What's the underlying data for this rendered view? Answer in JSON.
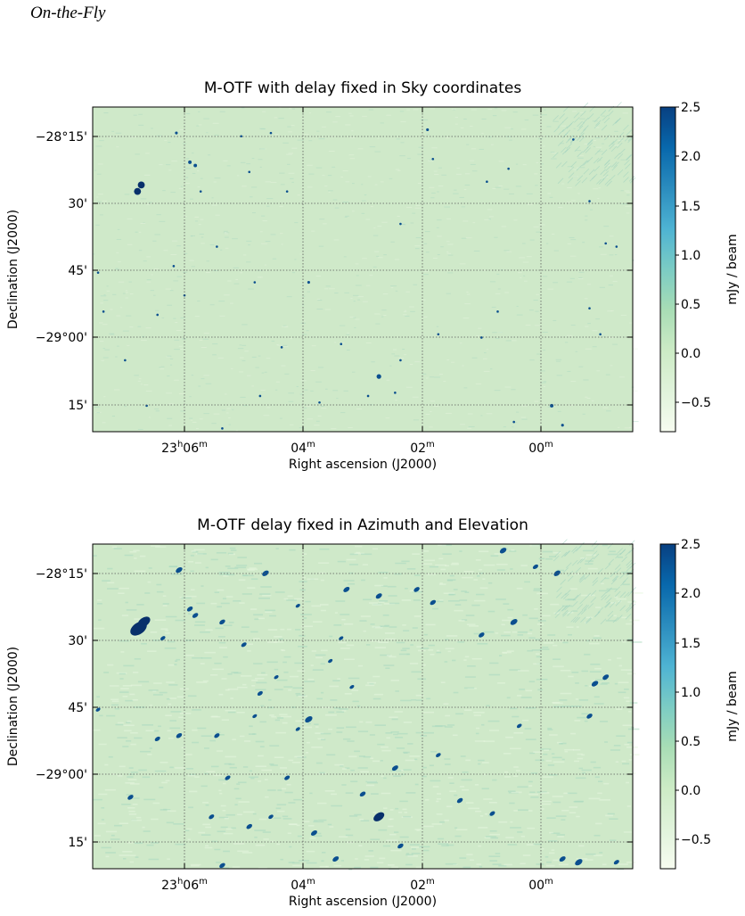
{
  "page": {
    "header": "On-the-Fly"
  },
  "colors": {
    "map_background": "#cfe9c9",
    "source": "#0b4f8f",
    "source_dark": "#08306b",
    "grid": "#5a5a5a",
    "colormap": [
      "#f7fcf0",
      "#e0f3db",
      "#ccebc5",
      "#a8ddb5",
      "#7bccc4",
      "#4eb3d3",
      "#2b8cbe",
      "#0868ac",
      "#084081"
    ]
  },
  "chart_data": [
    {
      "type": "heatmap",
      "title": "M-OTF with delay fixed in Sky coordinates",
      "xlabel": "Right ascension (J2000)",
      "ylabel": "Declination (J2000)",
      "x_ticks": [
        {
          "hours": "23",
          "minutes": "06",
          "label_main": "23",
          "sup1": "h",
          "label_mid": "06",
          "sup2": "m"
        },
        {
          "minutes": "04",
          "label_main": "04",
          "sup2": "m"
        },
        {
          "minutes": "02",
          "label_main": "02",
          "sup2": "m"
        },
        {
          "minutes": "00",
          "label_main": "00",
          "sup2": "m"
        }
      ],
      "y_ticks": [
        "−28°15'",
        "30'",
        "45'",
        "−29°00'",
        "15'"
      ],
      "colorbar": {
        "label": "mJy / beam",
        "ticks": [
          "2.5",
          "2.0",
          "1.5",
          "1.0",
          "0.5",
          "0.0",
          "−0.5"
        ],
        "range": [
          -0.8,
          2.5
        ]
      },
      "grid": true,
      "sources": "compact"
    },
    {
      "type": "heatmap",
      "title": "M-OTF delay fixed in Azimuth and Elevation",
      "xlabel": "Right ascension (J2000)",
      "ylabel": "Declination (J2000)",
      "x_ticks": [
        {
          "hours": "23",
          "minutes": "06",
          "label_main": "23",
          "sup1": "h",
          "label_mid": "06",
          "sup2": "m"
        },
        {
          "minutes": "04",
          "label_main": "04",
          "sup2": "m"
        },
        {
          "minutes": "02",
          "label_main": "02",
          "sup2": "m"
        },
        {
          "minutes": "00",
          "label_main": "00",
          "sup2": "m"
        }
      ],
      "y_ticks": [
        "−28°15'",
        "30'",
        "45'",
        "−29°00'",
        "15'"
      ],
      "colorbar": {
        "label": "mJy / beam",
        "ticks": [
          "2.5",
          "2.0",
          "1.5",
          "1.0",
          "0.5",
          "0.0",
          "−0.5"
        ],
        "range": [
          -0.8,
          2.5
        ]
      },
      "grid": true,
      "sources": "smeared"
    }
  ]
}
